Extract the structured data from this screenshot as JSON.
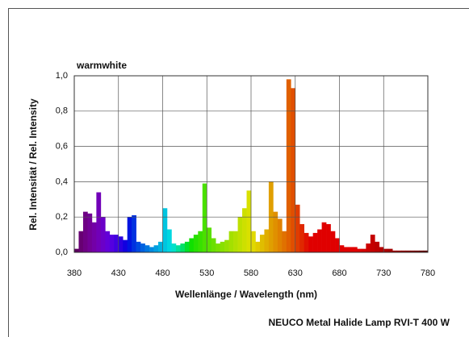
{
  "chart_data": {
    "type": "histogram",
    "title": "warmwhite",
    "x_label": "Wellenlänge / Wavelength (nm)",
    "y_label": "Rel. Intensität / Rel. Intensity",
    "caption": "NEUCO Metal Halide Lamp RVI-T 400 W",
    "bins": [
      380,
      385,
      390,
      395,
      400,
      405,
      410,
      415,
      420,
      425,
      430,
      435,
      440,
      445,
      450,
      455,
      460,
      465,
      470,
      475,
      480,
      485,
      490,
      495,
      500,
      505,
      510,
      515,
      520,
      525,
      530,
      535,
      540,
      545,
      550,
      555,
      560,
      565,
      570,
      575,
      580,
      585,
      590,
      595,
      600,
      605,
      610,
      615,
      620,
      625,
      630,
      635,
      640,
      645,
      650,
      655,
      660,
      665,
      670,
      675,
      680,
      685,
      690,
      695,
      700,
      705,
      710,
      715,
      720,
      725,
      730,
      735,
      740,
      745,
      750,
      755,
      760,
      765,
      770,
      775,
      780
    ],
    "values": [
      0.02,
      0.12,
      0.23,
      0.22,
      0.17,
      0.34,
      0.2,
      0.12,
      0.1,
      0.1,
      0.09,
      0.07,
      0.2,
      0.21,
      0.06,
      0.05,
      0.04,
      0.03,
      0.04,
      0.06,
      0.25,
      0.13,
      0.05,
      0.04,
      0.05,
      0.06,
      0.08,
      0.1,
      0.12,
      0.39,
      0.14,
      0.08,
      0.05,
      0.06,
      0.07,
      0.12,
      0.12,
      0.2,
      0.25,
      0.35,
      0.12,
      0.06,
      0.1,
      0.13,
      0.4,
      0.23,
      0.19,
      0.12,
      0.98,
      0.93,
      0.27,
      0.16,
      0.11,
      0.09,
      0.11,
      0.13,
      0.17,
      0.16,
      0.12,
      0.08,
      0.04,
      0.03,
      0.03,
      0.03,
      0.02,
      0.02,
      0.05,
      0.1,
      0.06,
      0.03,
      0.02,
      0.02,
      0.01,
      0.01,
      0.01,
      0.01,
      0.01,
      0.01,
      0.01,
      0.01
    ],
    "xlim": [
      380,
      780
    ],
    "xticks": [
      380,
      430,
      480,
      530,
      580,
      630,
      680,
      730,
      780
    ],
    "ylim": [
      0,
      1
    ],
    "yticks": [
      {
        "value": 0,
        "label": "0,0"
      },
      {
        "value": 0.2,
        "label": "0,2"
      },
      {
        "value": 0.4,
        "label": "0,4"
      },
      {
        "value": 0.6,
        "label": "0,6"
      },
      {
        "value": 0.8,
        "label": "0,8"
      },
      {
        "value": 1,
        "label": "1,0"
      }
    ],
    "grid": true
  }
}
